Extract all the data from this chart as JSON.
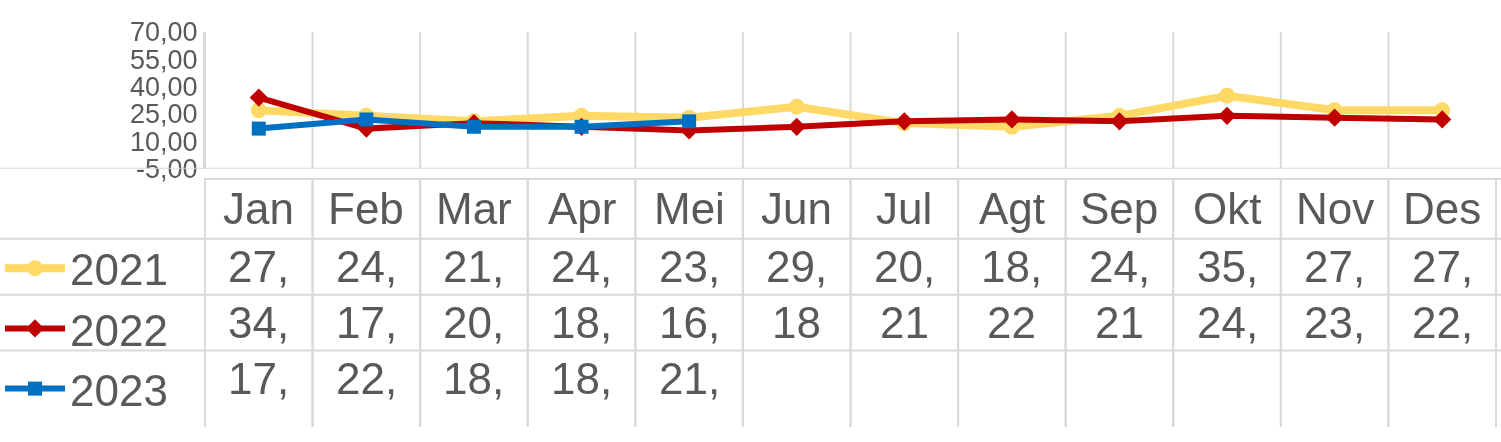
{
  "chart_data": {
    "type": "line",
    "categories": [
      "Jan",
      "Feb",
      "Mar",
      "Apr",
      "Mei",
      "Jun",
      "Jul",
      "Agt",
      "Sep",
      "Okt",
      "Nov",
      "Des"
    ],
    "ylim": [
      -5,
      70
    ],
    "yticks": [
      {
        "value": -5,
        "label": "-5,00"
      },
      {
        "value": 10,
        "label": "10,00"
      },
      {
        "value": 25,
        "label": "25,00"
      },
      {
        "value": 40,
        "label": "40,00"
      },
      {
        "value": 55,
        "label": "55,00"
      },
      {
        "value": 70,
        "label": "70,00"
      }
    ],
    "series": [
      {
        "name": "2021",
        "color": "#ffd966",
        "marker": "circle",
        "values": [
          27,
          24,
          21,
          24,
          23,
          29,
          20,
          18,
          24,
          35,
          27,
          27
        ],
        "value_labels": [
          "27,",
          "24,",
          "21,",
          "24,",
          "23,",
          "29,",
          "20,",
          "18,",
          "24,",
          "35,",
          "27,",
          "27,"
        ]
      },
      {
        "name": "2022",
        "color": "#c00000",
        "marker": "diamond",
        "values": [
          34,
          17,
          20,
          18,
          16,
          18,
          21,
          22,
          21,
          24,
          23,
          22
        ],
        "value_labels": [
          "34,",
          "17,",
          "20,",
          "18,",
          "16,",
          "18",
          "21",
          "22",
          "21",
          "24,",
          "23,",
          "22,"
        ]
      },
      {
        "name": "2023",
        "color": "#0070c0",
        "marker": "square",
        "values": [
          17,
          22,
          18,
          18,
          21,
          null,
          null,
          null,
          null,
          null,
          null,
          null
        ],
        "value_labels": [
          "17,",
          "22,",
          "18,",
          "18,",
          "21,",
          null,
          null,
          null,
          null,
          null,
          null,
          null
        ]
      }
    ],
    "grid": false,
    "legend": "left"
  }
}
